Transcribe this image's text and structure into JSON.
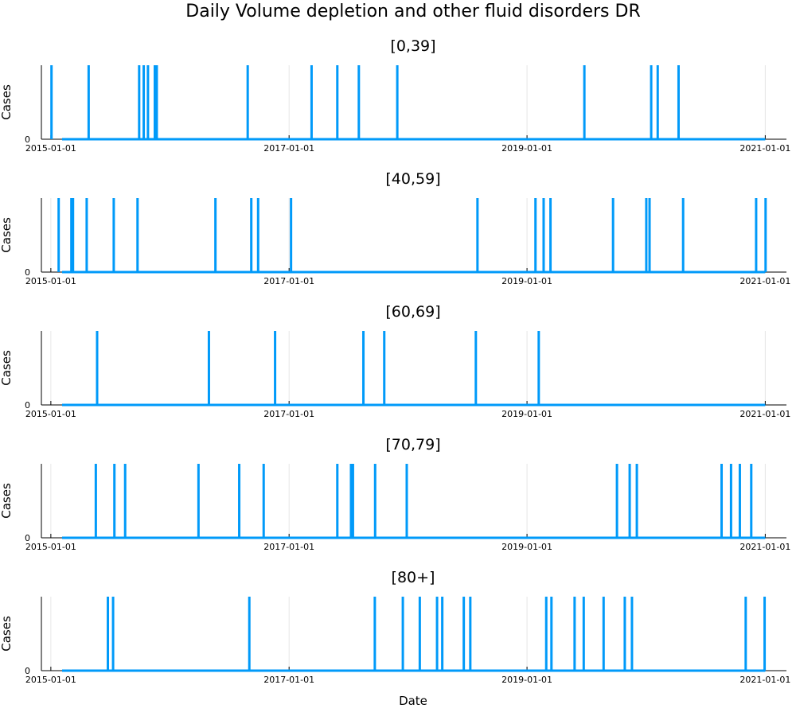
{
  "chart_data": {
    "type": "line",
    "title": "Daily Volume depletion and other fluid disorders DR",
    "xlabel": "Date",
    "ylabel": "Cases",
    "x_range": [
      "2014-12-03",
      "2021-03-07"
    ],
    "x_ticks": [
      "2015-01-01",
      "2017-01-01",
      "2019-01-01",
      "2021-01-01"
    ],
    "y_range": [
      0,
      1
    ],
    "y_ticks": [
      0
    ],
    "color": "#009AF9",
    "grid": true,
    "legend": "none",
    "panels": [
      {
        "title": "[0,39]",
        "x": [
          "2015-01-03",
          "2015-04-27",
          "2015-09-29",
          "2015-10-13",
          "2015-10-26",
          "2015-11-16",
          "2015-11-22",
          "2016-08-27",
          "2017-03-11",
          "2017-05-29",
          "2017-08-03",
          "2017-11-29",
          "2019-06-26",
          "2020-01-17",
          "2020-02-06",
          "2020-04-10"
        ],
        "values": [
          1,
          1,
          1,
          1,
          1,
          1,
          1,
          1,
          1,
          1,
          1,
          1,
          1,
          1,
          1,
          1
        ]
      },
      {
        "title": "[40,59]",
        "x": [
          "2015-01-25",
          "2015-03-05",
          "2015-03-10",
          "2015-04-21",
          "2015-07-13",
          "2015-09-24",
          "2016-05-20",
          "2016-09-07",
          "2016-09-28",
          "2017-01-07",
          "2018-08-02",
          "2019-01-27",
          "2019-02-21",
          "2019-03-14",
          "2019-09-22",
          "2020-01-02",
          "2020-01-12",
          "2020-04-24",
          "2020-12-04",
          "2021-01-02"
        ],
        "values": [
          1,
          1,
          1,
          1,
          1,
          1,
          1,
          1,
          1,
          1,
          1,
          1,
          1,
          1,
          1,
          1,
          1,
          1,
          1,
          1
        ]
      },
      {
        "title": "[60,69]",
        "x": [
          "2015-05-23",
          "2016-04-30",
          "2016-11-19",
          "2017-08-17",
          "2017-10-20",
          "2018-07-28",
          "2019-02-06"
        ],
        "values": [
          1,
          1,
          1,
          1,
          1,
          1,
          1
        ]
      },
      {
        "title": "[70,79]",
        "x": [
          "2015-05-19",
          "2015-07-15",
          "2015-08-17",
          "2016-03-29",
          "2016-08-01",
          "2016-10-15",
          "2017-05-29",
          "2017-07-10",
          "2017-07-16",
          "2017-09-22",
          "2017-12-28",
          "2019-10-04",
          "2019-11-12",
          "2019-12-04",
          "2020-08-20",
          "2020-09-18",
          "2020-10-15",
          "2020-11-19"
        ],
        "values": [
          1,
          1,
          1,
          1,
          1,
          1,
          1,
          1,
          1,
          1,
          1,
          1,
          1,
          1,
          1,
          1,
          1,
          1
        ]
      },
      {
        "title": "[80+]",
        "x": [
          "2015-06-25",
          "2015-07-11",
          "2016-09-01",
          "2017-09-21",
          "2017-12-16",
          "2018-02-06",
          "2018-03-31",
          "2018-04-16",
          "2018-06-21",
          "2018-07-11",
          "2019-03-01",
          "2019-03-17",
          "2019-05-27",
          "2019-06-24",
          "2019-08-24",
          "2019-10-28",
          "2019-11-19",
          "2020-11-02",
          "2020-12-30"
        ],
        "values": [
          1,
          1,
          1,
          1,
          1,
          1,
          1,
          1,
          1,
          1,
          1,
          1,
          1,
          1,
          1,
          1,
          1,
          1,
          1
        ]
      }
    ]
  }
}
